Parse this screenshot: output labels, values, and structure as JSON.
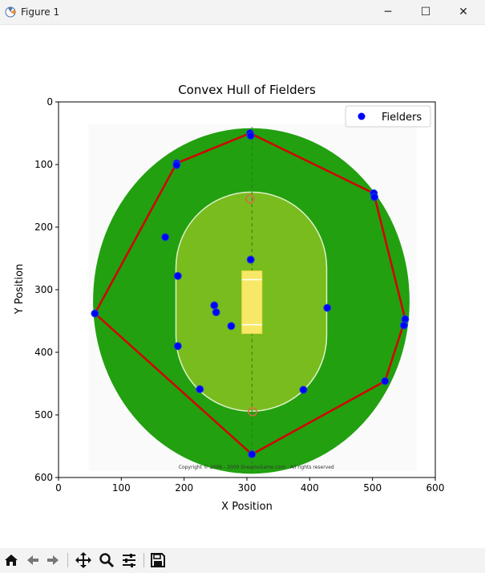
{
  "window": {
    "title": "Figure 1",
    "minimize_label": "─",
    "maximize_label": "☐",
    "close_label": "✕"
  },
  "toolbar": {
    "buttons": [
      "home-icon",
      "back-icon",
      "forward-icon",
      "pan-icon",
      "zoom-icon",
      "configure-icon",
      "save-icon"
    ]
  },
  "chart_data": {
    "type": "scatter",
    "title": "Convex Hull of Fielders",
    "xlabel": "X Position",
    "ylabel": "Y Position",
    "xlim": [
      0,
      600
    ],
    "ylim": [
      600,
      0
    ],
    "xticks": [
      0,
      100,
      200,
      300,
      400,
      500,
      600
    ],
    "yticks": [
      0,
      100,
      200,
      300,
      400,
      500,
      600
    ],
    "legend": {
      "position": "top-right",
      "entries": [
        {
          "label": "Fielders",
          "color": "#0000ff"
        }
      ]
    },
    "background_copyright": "Copyright © 2006 - 2009 DreamsGame.com . All rights reserved",
    "series": [
      {
        "name": "Fielders",
        "color": "#0000ff",
        "points": [
          [
            305,
            50
          ],
          [
            306,
            54
          ],
          [
            188,
            98
          ],
          [
            188,
            101
          ],
          [
            502,
            146
          ],
          [
            503,
            152
          ],
          [
            170,
            216
          ],
          [
            306,
            252
          ],
          [
            190,
            278
          ],
          [
            248,
            325
          ],
          [
            251,
            336
          ],
          [
            58,
            338
          ],
          [
            552,
            347
          ],
          [
            550,
            357
          ],
          [
            275,
            358
          ],
          [
            428,
            329
          ],
          [
            190,
            390
          ],
          [
            520,
            446
          ],
          [
            225,
            459
          ],
          [
            390,
            460
          ],
          [
            308,
            563
          ]
        ]
      }
    ],
    "hull": {
      "color": "#d40000",
      "points": [
        [
          305,
          50
        ],
        [
          502,
          146
        ],
        [
          552,
          347
        ],
        [
          520,
          446
        ],
        [
          308,
          563
        ],
        [
          58,
          338
        ],
        [
          188,
          98
        ]
      ]
    }
  }
}
